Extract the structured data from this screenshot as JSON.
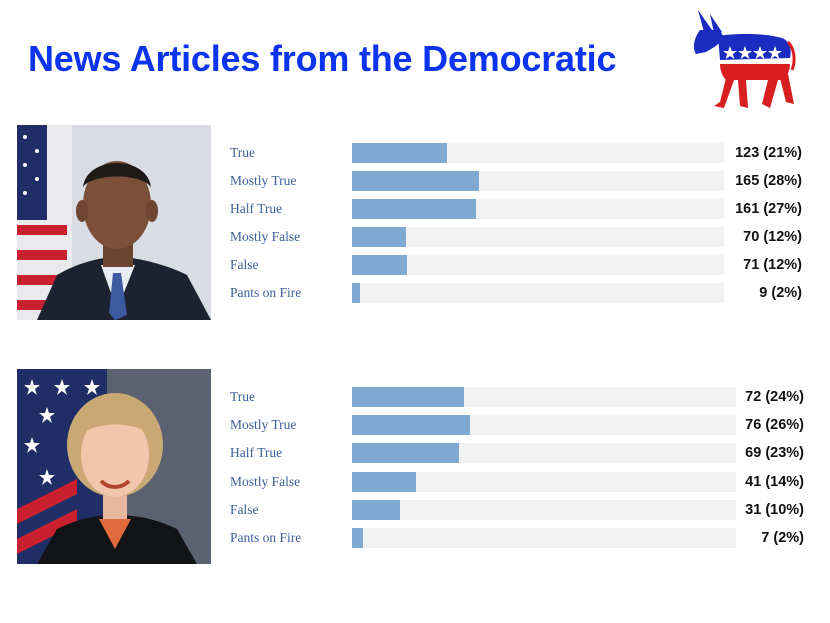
{
  "title": "News Articles from the Democratic",
  "logo": {
    "icon": "democratic-donkey-icon",
    "colors": {
      "blue": "#1a2dc0",
      "red": "#d81e1e",
      "white": "#ffffff"
    }
  },
  "colors": {
    "title": "#0b34f0",
    "bar": "#7ea9d2",
    "track": "#f2f2f2",
    "label": "#3d5f9b"
  },
  "chart_data": [
    {
      "type": "bar",
      "orientation": "horizontal",
      "categories": [
        "True",
        "Mostly True",
        "Half True",
        "Mostly False",
        "False",
        "Pants on Fire"
      ],
      "values": [
        123,
        165,
        161,
        70,
        71,
        9
      ],
      "value_labels": [
        "123 (21%)",
        "165 (28%)",
        "161 (27%)",
        "70 (12%)",
        "71 (12%)",
        "9 (2%)"
      ]
    },
    {
      "type": "bar",
      "orientation": "horizontal",
      "categories": [
        "True",
        "Mostly True",
        "Half True",
        "Mostly False",
        "False",
        "Pants on Fire"
      ],
      "values": [
        72,
        76,
        69,
        41,
        31,
        7
      ],
      "value_labels": [
        "72 (24%)",
        "76 (26%)",
        "69 (23%)",
        "41 (14%)",
        "31 (10%)",
        "7 (2%)"
      ]
    }
  ]
}
